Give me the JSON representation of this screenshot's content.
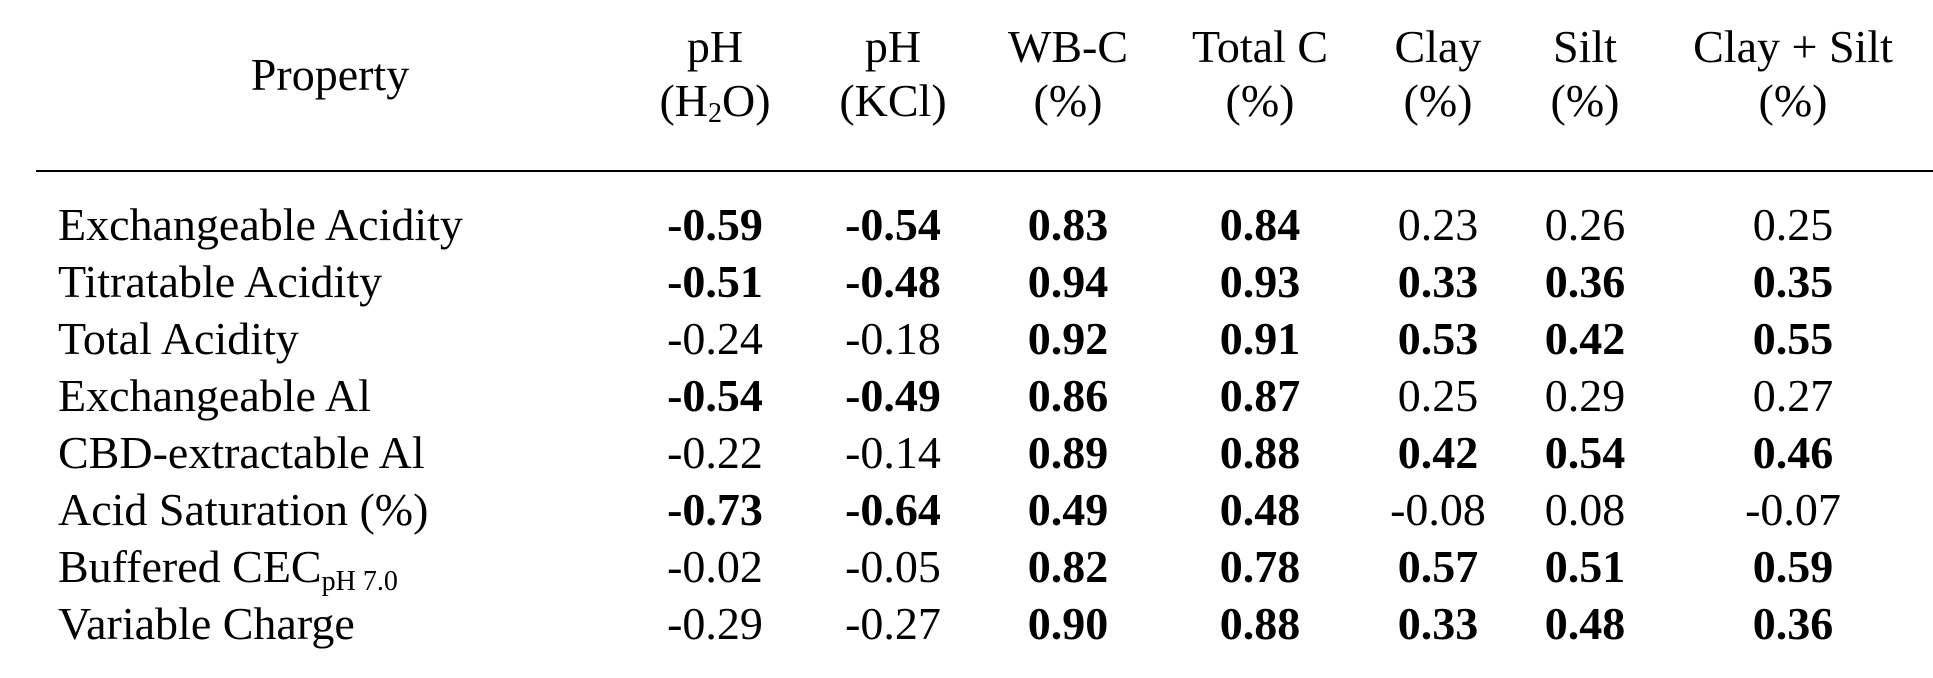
{
  "table": {
    "headers": [
      {
        "line1": "Property",
        "line2": "",
        "line2_sub": "",
        "line2_post": ""
      },
      {
        "line1": "pH",
        "line2": "(H",
        "line2_sub": "2",
        "line2_post": "O)"
      },
      {
        "line1": "pH",
        "line2": "(KCl)",
        "line2_sub": "",
        "line2_post": ""
      },
      {
        "line1": "WB-C",
        "line2": "(%)",
        "line2_sub": "",
        "line2_post": ""
      },
      {
        "line1": "Total C",
        "line2": "(%)",
        "line2_sub": "",
        "line2_post": ""
      },
      {
        "line1": "Clay",
        "line2": "(%)",
        "line2_sub": "",
        "line2_post": ""
      },
      {
        "line1": "Silt",
        "line2": "(%)",
        "line2_sub": "",
        "line2_post": ""
      },
      {
        "line1": "Clay + Silt",
        "line2": "(%)",
        "line2_sub": "",
        "line2_post": ""
      }
    ],
    "rows": [
      {
        "label": "Exchangeable Acidity",
        "label_sub": "",
        "values": [
          "-0.59",
          "-0.54",
          "0.83",
          "0.84",
          "0.23",
          "0.26",
          "0.25"
        ],
        "bold": [
          true,
          true,
          true,
          true,
          false,
          false,
          false
        ]
      },
      {
        "label": "Titratable Acidity",
        "label_sub": "",
        "values": [
          "-0.51",
          "-0.48",
          "0.94",
          "0.93",
          "0.33",
          "0.36",
          "0.35"
        ],
        "bold": [
          true,
          true,
          true,
          true,
          true,
          true,
          true
        ]
      },
      {
        "label": "Total Acidity",
        "label_sub": "",
        "values": [
          "-0.24",
          "-0.18",
          "0.92",
          "0.91",
          "0.53",
          "0.42",
          "0.55"
        ],
        "bold": [
          false,
          false,
          true,
          true,
          true,
          true,
          true
        ]
      },
      {
        "label": "Exchangeable Al",
        "label_sub": "",
        "values": [
          "-0.54",
          "-0.49",
          "0.86",
          "0.87",
          "0.25",
          "0.29",
          "0.27"
        ],
        "bold": [
          true,
          true,
          true,
          true,
          false,
          false,
          false
        ]
      },
      {
        "label": "CBD-extractable Al",
        "label_sub": "",
        "values": [
          "-0.22",
          "-0.14",
          "0.89",
          "0.88",
          "0.42",
          "0.54",
          "0.46"
        ],
        "bold": [
          false,
          false,
          true,
          true,
          true,
          true,
          true
        ]
      },
      {
        "label": "Acid Saturation (%)",
        "label_sub": "",
        "values": [
          "-0.73",
          "-0.64",
          "0.49",
          "0.48",
          "-0.08",
          "0.08",
          "-0.07"
        ],
        "bold": [
          true,
          true,
          true,
          true,
          false,
          false,
          false
        ]
      },
      {
        "label": "Buffered CEC",
        "label_sub": "pH 7.0",
        "values": [
          "-0.02",
          "-0.05",
          "0.82",
          "0.78",
          "0.57",
          "0.51",
          "0.59"
        ],
        "bold": [
          false,
          false,
          true,
          true,
          true,
          true,
          true
        ]
      },
      {
        "label": "Variable Charge",
        "label_sub": "",
        "values": [
          "-0.29",
          "-0.27",
          "0.90",
          "0.88",
          "0.33",
          "0.48",
          "0.36"
        ],
        "bold": [
          false,
          false,
          true,
          true,
          true,
          true,
          true
        ]
      }
    ]
  }
}
